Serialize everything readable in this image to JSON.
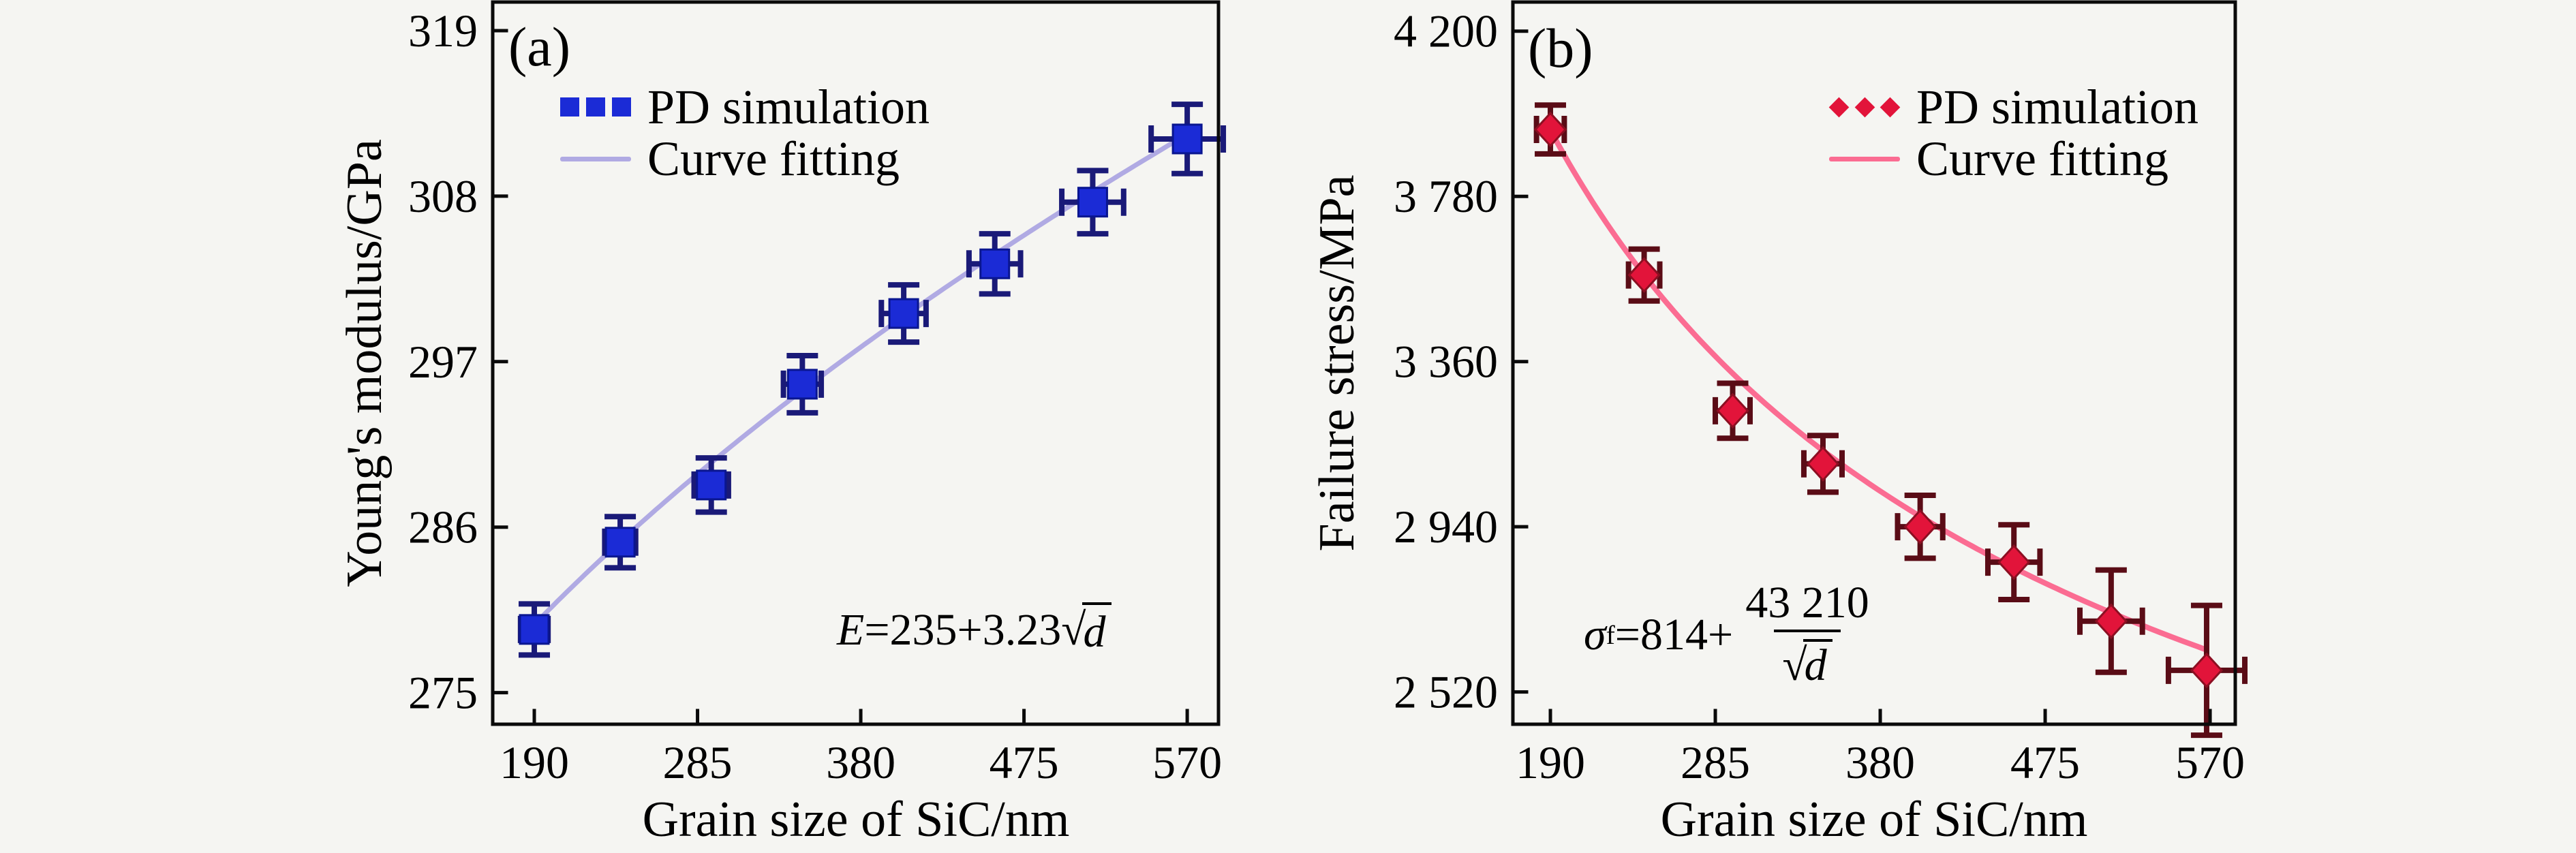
{
  "figure": {
    "background": "#f5f5f2",
    "frame_color": "#0a0a0a",
    "text_color": "#000000"
  },
  "chart_data": [
    {
      "id": "a",
      "type": "scatter",
      "panel_label": "(a)",
      "xlabel": "Grain size of SiC/nm",
      "ylabel": "Young's modulus/GPa",
      "xlim": [
        165.8,
        588.2
      ],
      "ylim": [
        272.9,
        320.9
      ],
      "grid": false,
      "legend_position": "upper-left-inside",
      "x_ticks": [
        {
          "v": 190,
          "label": "190"
        },
        {
          "v": 285,
          "label": "285"
        },
        {
          "v": 380,
          "label": "380"
        },
        {
          "v": 475,
          "label": "475"
        },
        {
          "v": 570,
          "label": "570"
        }
      ],
      "y_ticks": [
        {
          "v": 275,
          "label": "275"
        },
        {
          "v": 286,
          "label": "286"
        },
        {
          "v": 297,
          "label": "297"
        },
        {
          "v": 308,
          "label": "308"
        },
        {
          "v": 319,
          "label": "319"
        }
      ],
      "series": [
        {
          "name": "PD simulation",
          "marker": "square",
          "marker_size": 42,
          "color": "#1b2bd6",
          "edge_color": "#0a1690",
          "error_color": "#1a1a78",
          "points": [
            {
              "x": 190,
              "y": 279.2,
              "xerr": 8,
              "yerr": 1.7
            },
            {
              "x": 240,
              "y": 285.0,
              "xerr": 9,
              "yerr": 1.7
            },
            {
              "x": 293,
              "y": 288.8,
              "xerr": 10,
              "yerr": 1.8
            },
            {
              "x": 346,
              "y": 295.5,
              "xerr": 11,
              "yerr": 1.9
            },
            {
              "x": 405,
              "y": 300.2,
              "xerr": 13,
              "yerr": 1.9
            },
            {
              "x": 458,
              "y": 303.5,
              "xerr": 15,
              "yerr": 2.0
            },
            {
              "x": 515,
              "y": 307.6,
              "xerr": 18,
              "yerr": 2.1
            },
            {
              "x": 570,
              "y": 311.8,
              "xerr": 21,
              "yerr": 2.3
            }
          ]
        }
      ],
      "fit": {
        "name": "Curve fitting",
        "color": "#b0aae3",
        "line_width": 7,
        "model": "a_plus_b_sqrt",
        "a": 235,
        "b": 3.23,
        "x_range": [
          190,
          570
        ]
      },
      "legend": [
        {
          "label": "PD simulation"
        },
        {
          "label": "Curve fitting"
        }
      ],
      "equation": {
        "text": "E=235+3.23√d",
        "lhs": "E",
        "mid": "=235+3.23",
        "radical_sign": "√",
        "radicand": "d"
      }
    },
    {
      "id": "b",
      "type": "scatter",
      "panel_label": "(b)",
      "xlabel": "Grain size of SiC/nm",
      "ylabel": "Failure stress/MPa",
      "xlim": [
        168.4,
        584.5
      ],
      "ylim": [
        2438,
        4274
      ],
      "grid": false,
      "legend_position": "upper-center-inside",
      "x_ticks": [
        {
          "v": 190,
          "label": "190"
        },
        {
          "v": 285,
          "label": "285"
        },
        {
          "v": 380,
          "label": "380"
        },
        {
          "v": 475,
          "label": "475"
        },
        {
          "v": 570,
          "label": "570"
        }
      ],
      "y_ticks": [
        {
          "v": 2520,
          "label": "2 520"
        },
        {
          "v": 2940,
          "label": "2 940"
        },
        {
          "v": 3360,
          "label": "3 360"
        },
        {
          "v": 3780,
          "label": "3 780"
        },
        {
          "v": 4200,
          "label": "4 200"
        }
      ],
      "series": [
        {
          "name": "PD simulation",
          "marker": "diamond",
          "marker_size": 48,
          "color": "#e2143a",
          "edge_color": "#8c0f22",
          "error_color": "#5a0c16",
          "points": [
            {
              "x": 190,
              "y": 3950,
              "xerr": 8,
              "yerr": 62
            },
            {
              "x": 244,
              "y": 3580,
              "xerr": 9,
              "yerr": 66
            },
            {
              "x": 295,
              "y": 3235,
              "xerr": 10,
              "yerr": 70
            },
            {
              "x": 347,
              "y": 3100,
              "xerr": 11,
              "yerr": 72
            },
            {
              "x": 403,
              "y": 2940,
              "xerr": 13,
              "yerr": 80
            },
            {
              "x": 457,
              "y": 2850,
              "xerr": 15,
              "yerr": 95
            },
            {
              "x": 513,
              "y": 2700,
              "xerr": 18,
              "yerr": 130
            },
            {
              "x": 568,
              "y": 2575,
              "xerr": 22,
              "yerr": 165
            }
          ]
        }
      ],
      "fit": {
        "name": "Curve fitting",
        "color": "#fb6c92",
        "line_width": 8,
        "model": "a_plus_b_over_sqrt",
        "a": 814,
        "b": 43210,
        "x_range": [
          190,
          568
        ]
      },
      "legend": [
        {
          "label": "PD simulation"
        },
        {
          "label": "Curve fitting"
        }
      ],
      "equation": {
        "text": "σf=814+43 210/√d",
        "lhs": "σ",
        "lhs_sub": "f",
        "mid": "=814+",
        "numerator": "43 210",
        "radical_sign": "√",
        "radicand": "d"
      }
    }
  ]
}
